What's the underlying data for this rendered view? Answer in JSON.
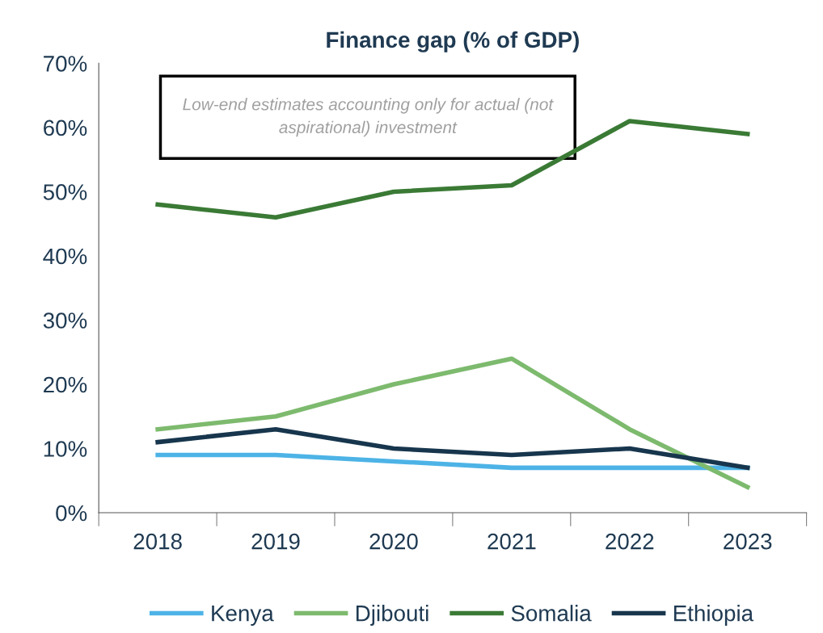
{
  "chart_data": {
    "type": "line",
    "title": "Finance gap (% of GDP)",
    "categories": [
      "2018",
      "2019",
      "2020",
      "2021",
      "2022",
      "2023"
    ],
    "series": [
      {
        "name": "Kenya",
        "color": "#4db3e6",
        "values": [
          9,
          9,
          8,
          7,
          7,
          7
        ]
      },
      {
        "name": "Djibouti",
        "color": "#7dba6e",
        "values": [
          13,
          15,
          20,
          24,
          13,
          4
        ]
      },
      {
        "name": "Somalia",
        "color": "#3a7a35",
        "values": [
          48,
          46,
          50,
          51,
          61,
          59
        ]
      },
      {
        "name": "Ethiopia",
        "color": "#17364d",
        "values": [
          11,
          13,
          10,
          9,
          10,
          7
        ]
      }
    ],
    "ylim": [
      0,
      70
    ],
    "yticks": [
      {
        "value": 0,
        "label": "0%"
      },
      {
        "value": 10,
        "label": "10%"
      },
      {
        "value": 20,
        "label": "20%"
      },
      {
        "value": 30,
        "label": "30%"
      },
      {
        "value": 40,
        "label": "40%"
      },
      {
        "value": 50,
        "label": "50%"
      },
      {
        "value": 60,
        "label": "60%"
      },
      {
        "value": 70,
        "label": "70%"
      }
    ],
    "annotations": [
      "Low-end estimates accounting only for actual (not aspirational) investment"
    ],
    "grid": false,
    "legend": "bottom",
    "marker": "none",
    "line_style": "solid"
  }
}
